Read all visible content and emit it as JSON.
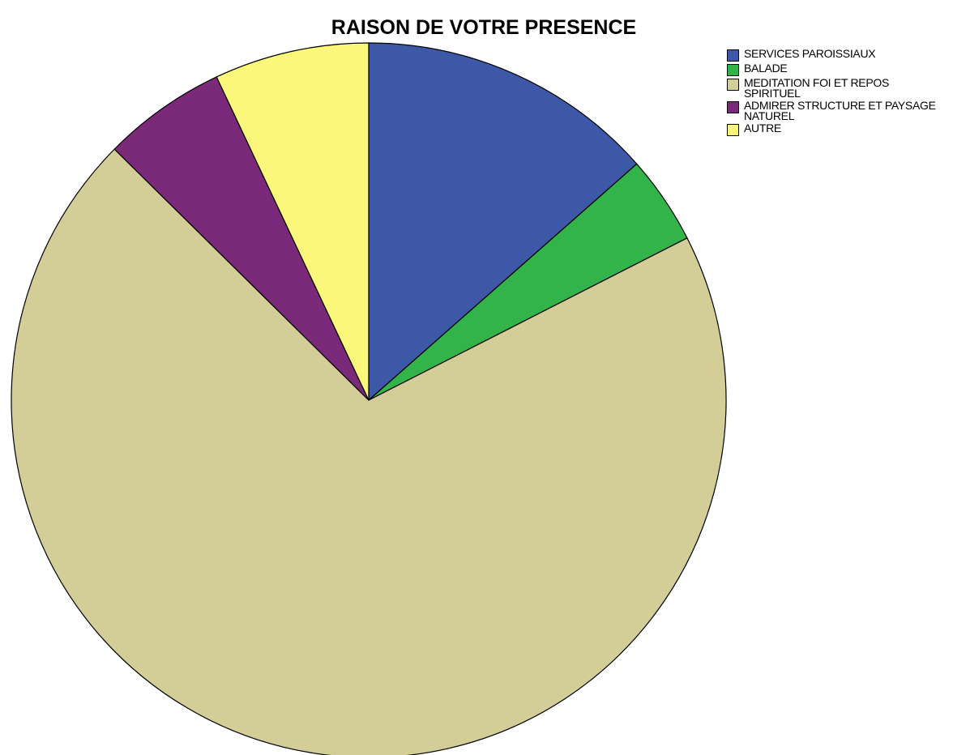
{
  "chart_data": {
    "type": "pie",
    "title": "RAISON DE VOTRE PRESENCE",
    "categories": [
      "SERVICES PAROISSIAUX",
      "BALADE",
      "MEDITATION FOI ET REPOS SPIRITUEL",
      "ADMIRER STRUCTURE ET PAYSAGE NATUREL",
      "AUTRE"
    ],
    "values": [
      13.5,
      4.0,
      69.9,
      5.6,
      7.0
    ],
    "colors": [
      "#3e58a8",
      "#33b44a",
      "#d3cd98",
      "#7a2a78",
      "#fbf77a"
    ],
    "legend": "top-right"
  }
}
